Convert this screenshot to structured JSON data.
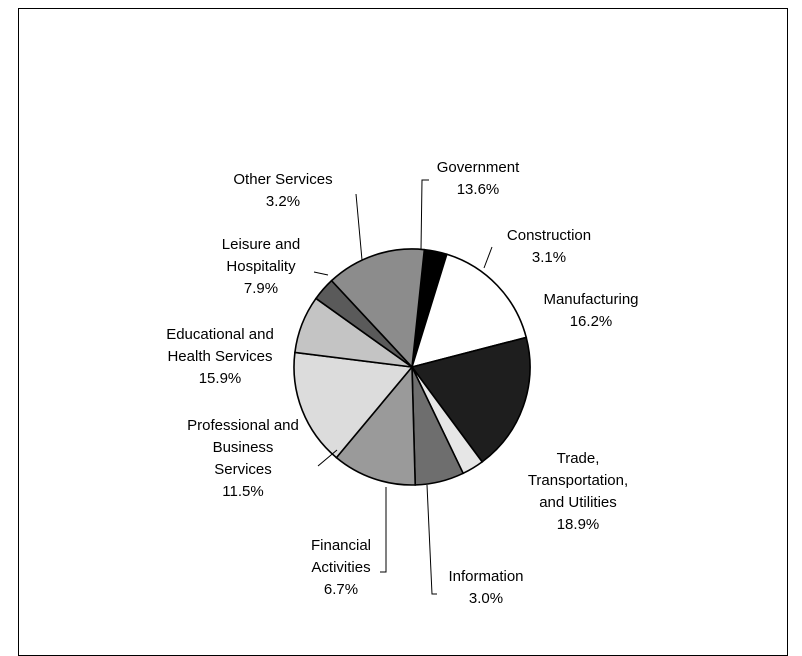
{
  "chart_data": {
    "type": "pie",
    "title": "",
    "start_angle_deg": 6,
    "direction": "clockwise",
    "slices": [
      {
        "label_lines": [
          "Construction",
          "3.1%"
        ],
        "value": 3.1,
        "color": "#000000"
      },
      {
        "label_lines": [
          "Manufacturing",
          "16.2%"
        ],
        "value": 16.2,
        "color": "#ffffff"
      },
      {
        "label_lines": [
          "Trade,",
          "Transportation,",
          "and Utilities",
          "18.9%"
        ],
        "value": 18.9,
        "color": "#1e1e1e"
      },
      {
        "label_lines": [
          "Information",
          "3.0%"
        ],
        "value": 3.0,
        "color": "#e6e6e6"
      },
      {
        "label_lines": [
          "Financial",
          "Activities",
          "6.7%"
        ],
        "value": 6.7,
        "color": "#6e6e6e"
      },
      {
        "label_lines": [
          "Professional and",
          "Business",
          "Services",
          "11.5%"
        ],
        "value": 11.5,
        "color": "#9a9a9a"
      },
      {
        "label_lines": [
          "Educational and",
          "Health Services",
          "15.9%"
        ],
        "value": 15.9,
        "color": "#dcdcdc"
      },
      {
        "label_lines": [
          "Leisure and",
          "Hospitality",
          "7.9%"
        ],
        "value": 7.9,
        "color": "#c4c4c4"
      },
      {
        "label_lines": [
          "Other Services",
          "3.2%"
        ],
        "value": 3.2,
        "color": "#5a5a5a"
      },
      {
        "label_lines": [
          "Government",
          "13.6%"
        ],
        "value": 13.6,
        "color": "#8c8c8c"
      }
    ]
  }
}
